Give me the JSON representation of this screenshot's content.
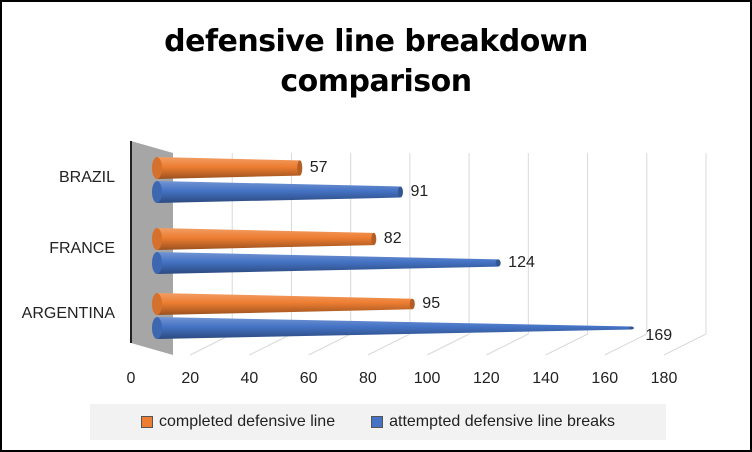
{
  "chart_data": {
    "type": "bar",
    "orientation": "horizontal",
    "shape": "cone-3d",
    "title_lines": [
      "defensive line breakdown",
      "comparison"
    ],
    "categories": [
      "BRAZIL",
      "FRANCE",
      "ARGENTINA"
    ],
    "series": [
      {
        "name": "completed defensive line",
        "color": "#ed7d31",
        "values": [
          57,
          82,
          95
        ]
      },
      {
        "name": "attempted defensive line breaks",
        "color": "#4472c4",
        "values": [
          91,
          124,
          169
        ]
      }
    ],
    "xlim": [
      0,
      180
    ],
    "xticks": [
      0,
      20,
      40,
      60,
      80,
      100,
      120,
      140,
      160,
      180
    ],
    "grid": true,
    "legend_position": "bottom"
  }
}
